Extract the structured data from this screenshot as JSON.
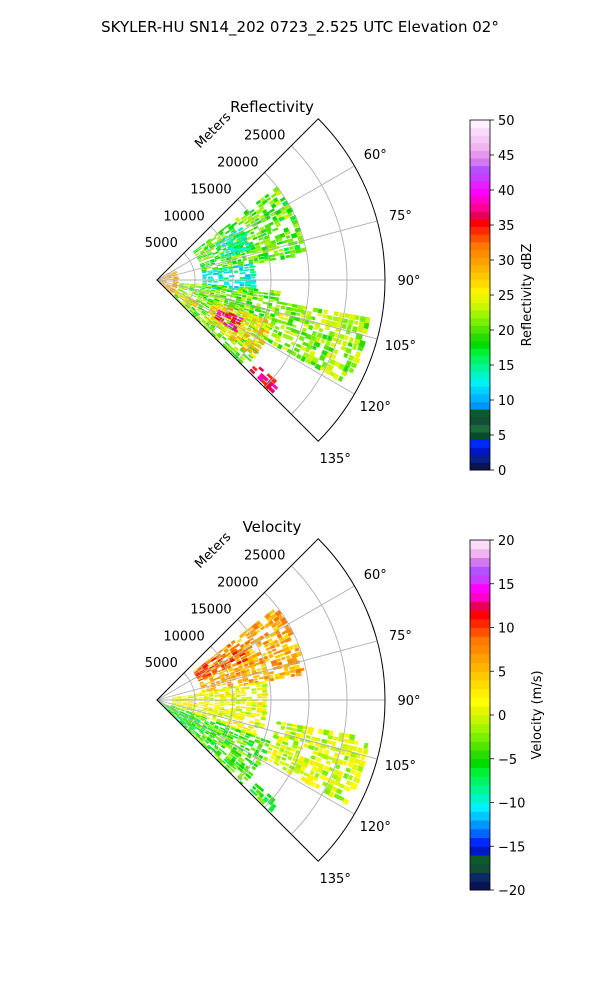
{
  "figure": {
    "title": "SKYLER-HU  SN14_202  0723_2.525 UTC Elevation 02°"
  },
  "chart_data": [
    {
      "type": "heatmap",
      "projection": "polar-sector",
      "title": "Reflectivity",
      "radial_label": "Meters",
      "azimuth_range_deg": [
        45,
        135
      ],
      "range_limit_m": [
        0,
        30000
      ],
      "radial_ticks": [
        5000,
        10000,
        15000,
        20000,
        25000
      ],
      "radial_tick_labels": [
        "5000",
        "10000",
        "15000",
        "20000",
        "25000"
      ],
      "azimuth_ticks": [
        60,
        75,
        90,
        105,
        120,
        135
      ],
      "azimuth_tick_labels": [
        "60°",
        "75°",
        "90°",
        "105°",
        "120°",
        "135°"
      ],
      "grid": true,
      "colorbar": {
        "label": "Reflectivity dBZ",
        "range": [
          0,
          50
        ],
        "ticks": [
          0,
          5,
          10,
          15,
          20,
          25,
          30,
          35,
          40,
          45,
          50
        ],
        "tick_labels": [
          "0",
          "5",
          "10",
          "15",
          "20",
          "25",
          "30",
          "35",
          "40",
          "45",
          "50"
        ],
        "colors": [
          "#0a1450",
          "#0a1f8c",
          "#0014c8",
          "#0028ff",
          "#064d2d",
          "#1a6a3a",
          "#124d35",
          "#0d5a2a",
          "#0096ff",
          "#00b4ff",
          "#00d2ff",
          "#00f0f0",
          "#00f5c8",
          "#00f596",
          "#00f564",
          "#00f032",
          "#00dc00",
          "#28dc00",
          "#50e600",
          "#78f000",
          "#a0f500",
          "#c8f500",
          "#e6f500",
          "#fff000",
          "#ffdc00",
          "#ffc800",
          "#ffb400",
          "#ffa000",
          "#ff8c00",
          "#ff7800",
          "#ff5000",
          "#ff2800",
          "#ff0000",
          "#e6005a",
          "#ff0096",
          "#ff00c8",
          "#ff00ff",
          "#e61eff",
          "#c83cff",
          "#b450ff",
          "#d278f0",
          "#e696f0",
          "#f0b4f0",
          "#f5c8f5",
          "#fadcfa",
          "#fff0ff"
        ]
      },
      "echo_regions": [
        {
          "az": [
            52,
            80
          ],
          "r": [
            6000,
            20000
          ],
          "value": 20
        },
        {
          "az": [
            58,
            72
          ],
          "r": [
            9000,
            13000
          ],
          "value": 14
        },
        {
          "az": [
            80,
            98
          ],
          "r": [
            6000,
            13000
          ],
          "value": 13
        },
        {
          "az": [
            95,
            135
          ],
          "r": [
            3000,
            16000
          ],
          "value": 21
        },
        {
          "az": [
            110,
            128
          ],
          "r": [
            8000,
            16000
          ],
          "value": 27
        },
        {
          "az": [
            114,
            122
          ],
          "r": [
            9000,
            12000
          ],
          "value": 38
        },
        {
          "az": [
            118,
            126
          ],
          "r": [
            2000,
            6000
          ],
          "value": 28
        },
        {
          "az": [
            130,
            134
          ],
          "r": [
            17000,
            21000
          ],
          "value": 36
        },
        {
          "az": [
            60,
            135
          ],
          "r": [
            0,
            2500
          ],
          "value": 30
        },
        {
          "az": [
            100,
            118
          ],
          "r": [
            16000,
            28000
          ],
          "value": 22
        }
      ]
    },
    {
      "type": "heatmap",
      "projection": "polar-sector",
      "title": "Velocity",
      "radial_label": "Meters",
      "azimuth_range_deg": [
        45,
        135
      ],
      "range_limit_m": [
        0,
        30000
      ],
      "radial_ticks": [
        5000,
        10000,
        15000,
        20000,
        25000
      ],
      "radial_tick_labels": [
        "5000",
        "10000",
        "15000",
        "20000",
        "25000"
      ],
      "azimuth_ticks": [
        60,
        75,
        90,
        105,
        120,
        135
      ],
      "azimuth_tick_labels": [
        "60°",
        "75°",
        "90°",
        "105°",
        "120°",
        "135°"
      ],
      "grid": true,
      "colorbar": {
        "label": "Velocity (m/s)",
        "range": [
          -20,
          20
        ],
        "ticks": [
          -20,
          -15,
          -10,
          -5,
          0,
          5,
          10,
          15,
          20
        ],
        "tick_labels": [
          "−20",
          "−15",
          "−10",
          "−5",
          "0",
          "5",
          "10",
          "15",
          "20"
        ],
        "colors": [
          "#0a1450",
          "#0a2a6a",
          "#124d35",
          "#0d5a2a",
          "#0014c8",
          "#0028ff",
          "#0064ff",
          "#0096ff",
          "#00c8ff",
          "#00f0ff",
          "#00f5c8",
          "#00f596",
          "#00f564",
          "#00f032",
          "#00dc00",
          "#28dc00",
          "#50e600",
          "#78f000",
          "#a0f500",
          "#c8f500",
          "#e6f500",
          "#ffff00",
          "#fff000",
          "#ffdc00",
          "#ffc800",
          "#ffb400",
          "#ffa000",
          "#ff8c00",
          "#ff7800",
          "#ff5000",
          "#ff2800",
          "#ff0000",
          "#e6005a",
          "#ff00c8",
          "#ff00ff",
          "#c83cff",
          "#b450ff",
          "#d278f0",
          "#f0b4f0",
          "#fadcfa"
        ]
      },
      "echo_regions": [
        {
          "az": [
            52,
            80
          ],
          "r": [
            6000,
            20000
          ],
          "value": 6
        },
        {
          "az": [
            52,
            66
          ],
          "r": [
            6000,
            13000
          ],
          "value": 9
        },
        {
          "az": [
            80,
            110
          ],
          "r": [
            2000,
            14000
          ],
          "value": 1
        },
        {
          "az": [
            110,
            135
          ],
          "r": [
            2000,
            16000
          ],
          "value": -4
        },
        {
          "az": [
            115,
            135
          ],
          "r": [
            0,
            6000
          ],
          "value": -6
        },
        {
          "az": [
            130,
            134
          ],
          "r": [
            17000,
            21000
          ],
          "value": -5
        },
        {
          "az": [
            100,
            118
          ],
          "r": [
            16000,
            28000
          ],
          "value": 0
        }
      ]
    }
  ]
}
